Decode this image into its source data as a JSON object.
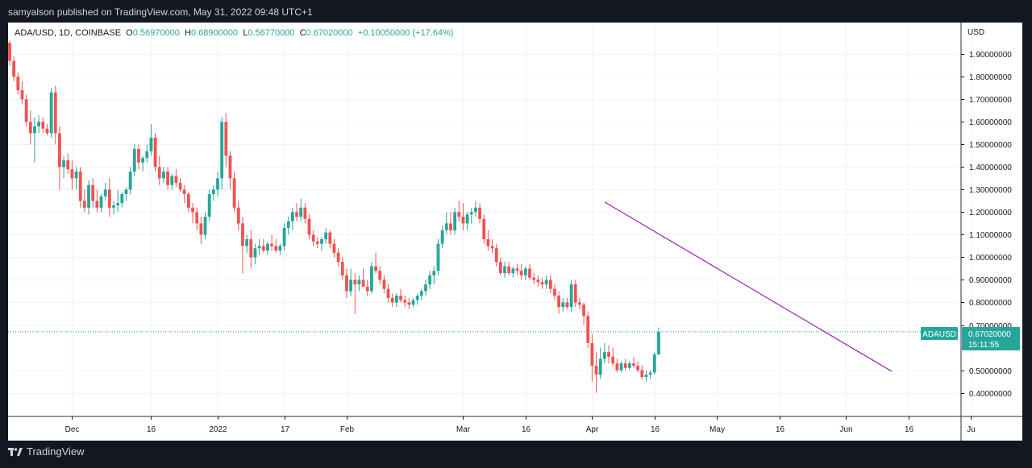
{
  "header": {
    "publish_text": "samyalson published on TradingView.com, May 31, 2022 09:48 UTC+1"
  },
  "legend": {
    "symbol": "ADA/USD, 1D, COINBASE",
    "open_label": "O",
    "open": "0.56970000",
    "high_label": "H",
    "high": "0.68900000",
    "low_label": "L",
    "low": "0.56770000",
    "close_label": "C",
    "close": "0.67020000",
    "change": "+0.10050000 (+17.64%)"
  },
  "price_tag": {
    "symbol": "ADAUSD",
    "price": "0.67020000",
    "countdown": "15:11:55"
  },
  "footer": {
    "brand": "TradingView"
  },
  "colors": {
    "up": "#26a69a",
    "down": "#ef5350",
    "trend": "#9c27b0",
    "grid": "#f0f3fa"
  },
  "chart_data": {
    "type": "candlestick",
    "title": "ADA/USD, 1D, COINBASE",
    "currency_label": "USD",
    "y_range": [
      0.295,
      2.04
    ],
    "y_ticks": [
      "1.90000000",
      "1.80000000",
      "1.70000000",
      "1.60000000",
      "1.50000000",
      "1.40000000",
      "1.30000000",
      "1.20000000",
      "1.10000000",
      "1.00000000",
      "0.90000000",
      "0.80000000",
      "0.70000000",
      "0.50000000",
      "0.40000000"
    ],
    "x_ticks": [
      {
        "label": "Dec",
        "bar": 15
      },
      {
        "label": "16",
        "bar": 34
      },
      {
        "label": "2022",
        "bar": 50
      },
      {
        "label": "17",
        "bar": 66
      },
      {
        "label": "Feb",
        "bar": 81
      },
      {
        "label": "Mar",
        "bar": 109
      },
      {
        "label": "16",
        "bar": 124
      },
      {
        "label": "Apr",
        "bar": 140
      },
      {
        "label": "16",
        "bar": 155
      },
      {
        "label": "May",
        "bar": 170
      },
      {
        "label": "16",
        "bar": 185
      },
      {
        "label": "Jun",
        "bar": 201
      },
      {
        "label": "16",
        "bar": 216
      },
      {
        "label": "Ju",
        "bar": 231
      }
    ],
    "trendline": {
      "start": {
        "bar": 143,
        "price": 1.245
      },
      "end": {
        "bar": 212,
        "price": 0.495
      }
    },
    "current_price": 0.6702,
    "candles": [
      [
        1.95,
        1.96,
        1.85,
        1.87
      ],
      [
        1.87,
        1.89,
        1.78,
        1.8
      ],
      [
        1.8,
        1.82,
        1.72,
        1.74
      ],
      [
        1.74,
        1.78,
        1.68,
        1.7
      ],
      [
        1.7,
        1.72,
        1.58,
        1.6
      ],
      [
        1.6,
        1.65,
        1.5,
        1.55
      ],
      [
        1.55,
        1.62,
        1.42,
        1.58
      ],
      [
        1.58,
        1.63,
        1.55,
        1.6
      ],
      [
        1.6,
        1.62,
        1.55,
        1.57
      ],
      [
        1.57,
        1.59,
        1.54,
        1.55
      ],
      [
        1.55,
        1.75,
        1.53,
        1.73
      ],
      [
        1.73,
        1.76,
        1.5,
        1.55
      ],
      [
        1.55,
        1.58,
        1.3,
        1.4
      ],
      [
        1.4,
        1.45,
        1.35,
        1.43
      ],
      [
        1.43,
        1.46,
        1.37,
        1.39
      ],
      [
        1.39,
        1.43,
        1.3,
        1.35
      ],
      [
        1.35,
        1.4,
        1.3,
        1.38
      ],
      [
        1.38,
        1.4,
        1.22,
        1.25
      ],
      [
        1.25,
        1.3,
        1.2,
        1.22
      ],
      [
        1.22,
        1.34,
        1.19,
        1.32
      ],
      [
        1.32,
        1.35,
        1.22,
        1.25
      ],
      [
        1.25,
        1.3,
        1.2,
        1.22
      ],
      [
        1.22,
        1.28,
        1.2,
        1.27
      ],
      [
        1.27,
        1.33,
        1.25,
        1.3
      ],
      [
        1.3,
        1.35,
        1.18,
        1.22
      ],
      [
        1.22,
        1.25,
        1.19,
        1.23
      ],
      [
        1.23,
        1.3,
        1.2,
        1.24
      ],
      [
        1.24,
        1.29,
        1.22,
        1.28
      ],
      [
        1.28,
        1.31,
        1.25,
        1.3
      ],
      [
        1.3,
        1.4,
        1.28,
        1.38
      ],
      [
        1.38,
        1.5,
        1.36,
        1.48
      ],
      [
        1.48,
        1.5,
        1.39,
        1.42
      ],
      [
        1.42,
        1.45,
        1.38,
        1.44
      ],
      [
        1.44,
        1.5,
        1.42,
        1.47
      ],
      [
        1.47,
        1.59,
        1.45,
        1.53
      ],
      [
        1.53,
        1.55,
        1.38,
        1.4
      ],
      [
        1.4,
        1.45,
        1.32,
        1.35
      ],
      [
        1.35,
        1.4,
        1.33,
        1.38
      ],
      [
        1.38,
        1.4,
        1.3,
        1.32
      ],
      [
        1.32,
        1.37,
        1.3,
        1.36
      ],
      [
        1.36,
        1.39,
        1.31,
        1.33
      ],
      [
        1.33,
        1.35,
        1.29,
        1.3
      ],
      [
        1.3,
        1.32,
        1.24,
        1.28
      ],
      [
        1.28,
        1.29,
        1.2,
        1.22
      ],
      [
        1.22,
        1.24,
        1.15,
        1.2
      ],
      [
        1.2,
        1.22,
        1.12,
        1.15
      ],
      [
        1.15,
        1.18,
        1.06,
        1.1
      ],
      [
        1.1,
        1.2,
        1.08,
        1.18
      ],
      [
        1.18,
        1.3,
        1.16,
        1.28
      ],
      [
        1.28,
        1.32,
        1.25,
        1.3
      ],
      [
        1.3,
        1.38,
        1.27,
        1.35
      ],
      [
        1.35,
        1.62,
        1.3,
        1.6
      ],
      [
        1.6,
        1.64,
        1.4,
        1.45
      ],
      [
        1.45,
        1.47,
        1.3,
        1.35
      ],
      [
        1.35,
        1.38,
        1.2,
        1.22
      ],
      [
        1.22,
        1.25,
        1.12,
        1.15
      ],
      [
        1.15,
        1.18,
        0.93,
        1.05
      ],
      [
        1.05,
        1.1,
        1.02,
        1.08
      ],
      [
        1.08,
        1.12,
        0.95,
        1.0
      ],
      [
        1.0,
        1.06,
        0.97,
        1.04
      ],
      [
        1.04,
        1.08,
        1.01,
        1.05
      ],
      [
        1.05,
        1.08,
        1.02,
        1.03
      ],
      [
        1.03,
        1.07,
        1.01,
        1.06
      ],
      [
        1.06,
        1.1,
        1.03,
        1.05
      ],
      [
        1.05,
        1.08,
        1.02,
        1.03
      ],
      [
        1.03,
        1.06,
        1.01,
        1.05
      ],
      [
        1.05,
        1.15,
        1.03,
        1.13
      ],
      [
        1.13,
        1.18,
        1.1,
        1.16
      ],
      [
        1.16,
        1.22,
        1.12,
        1.2
      ],
      [
        1.2,
        1.24,
        1.16,
        1.18
      ],
      [
        1.18,
        1.26,
        1.16,
        1.22
      ],
      [
        1.22,
        1.24,
        1.15,
        1.17
      ],
      [
        1.17,
        1.19,
        1.08,
        1.1
      ],
      [
        1.1,
        1.12,
        1.05,
        1.07
      ],
      [
        1.07,
        1.09,
        1.04,
        1.06
      ],
      [
        1.06,
        1.09,
        1.03,
        1.08
      ],
      [
        1.08,
        1.13,
        1.06,
        1.11
      ],
      [
        1.11,
        1.12,
        1.04,
        1.06
      ],
      [
        1.06,
        1.08,
        1.0,
        1.02
      ],
      [
        1.02,
        1.04,
        0.96,
        0.98
      ],
      [
        0.98,
        1.0,
        0.9,
        0.92
      ],
      [
        0.92,
        0.95,
        0.82,
        0.85
      ],
      [
        0.85,
        0.95,
        0.83,
        0.9
      ],
      [
        0.9,
        0.93,
        0.75,
        0.88
      ],
      [
        0.88,
        0.92,
        0.85,
        0.9
      ],
      [
        0.9,
        0.95,
        0.87,
        0.87
      ],
      [
        0.87,
        0.9,
        0.83,
        0.85
      ],
      [
        0.85,
        0.98,
        0.84,
        0.96
      ],
      [
        0.96,
        1.02,
        0.93,
        0.94
      ],
      [
        0.94,
        0.96,
        0.88,
        0.9
      ],
      [
        0.9,
        0.92,
        0.84,
        0.86
      ],
      [
        0.86,
        0.88,
        0.8,
        0.82
      ],
      [
        0.82,
        0.84,
        0.78,
        0.8
      ],
      [
        0.8,
        0.84,
        0.78,
        0.83
      ],
      [
        0.83,
        0.86,
        0.8,
        0.81
      ],
      [
        0.81,
        0.83,
        0.78,
        0.8
      ],
      [
        0.8,
        0.82,
        0.77,
        0.79
      ],
      [
        0.79,
        0.82,
        0.78,
        0.81
      ],
      [
        0.81,
        0.84,
        0.79,
        0.83
      ],
      [
        0.83,
        0.86,
        0.81,
        0.85
      ],
      [
        0.85,
        0.9,
        0.83,
        0.88
      ],
      [
        0.88,
        0.94,
        0.86,
        0.92
      ],
      [
        0.92,
        0.96,
        0.88,
        0.94
      ],
      [
        0.94,
        1.08,
        0.92,
        1.06
      ],
      [
        1.06,
        1.14,
        1.04,
        1.12
      ],
      [
        1.12,
        1.2,
        1.1,
        1.15
      ],
      [
        1.15,
        1.2,
        1.1,
        1.12
      ],
      [
        1.12,
        1.22,
        1.1,
        1.2
      ],
      [
        1.2,
        1.25,
        1.16,
        1.18
      ],
      [
        1.18,
        1.24,
        1.12,
        1.15
      ],
      [
        1.15,
        1.2,
        1.12,
        1.19
      ],
      [
        1.19,
        1.22,
        1.15,
        1.2
      ],
      [
        1.2,
        1.25,
        1.18,
        1.22
      ],
      [
        1.22,
        1.24,
        1.15,
        1.17
      ],
      [
        1.17,
        1.19,
        1.06,
        1.08
      ],
      [
        1.08,
        1.12,
        1.03,
        1.05
      ],
      [
        1.05,
        1.08,
        1.02,
        1.04
      ],
      [
        1.04,
        1.06,
        0.96,
        0.98
      ],
      [
        0.98,
        1.0,
        0.92,
        0.93
      ],
      [
        0.93,
        0.98,
        0.91,
        0.96
      ],
      [
        0.96,
        0.98,
        0.92,
        0.93
      ],
      [
        0.93,
        0.96,
        0.91,
        0.95
      ],
      [
        0.95,
        0.97,
        0.92,
        0.94
      ],
      [
        0.94,
        0.97,
        0.9,
        0.92
      ],
      [
        0.92,
        0.96,
        0.9,
        0.95
      ],
      [
        0.95,
        0.97,
        0.9,
        0.91
      ],
      [
        0.91,
        0.93,
        0.88,
        0.9
      ],
      [
        0.9,
        0.92,
        0.87,
        0.89
      ],
      [
        0.89,
        0.91,
        0.86,
        0.88
      ],
      [
        0.88,
        0.92,
        0.86,
        0.9
      ],
      [
        0.9,
        0.92,
        0.84,
        0.86
      ],
      [
        0.86,
        0.88,
        0.81,
        0.83
      ],
      [
        0.83,
        0.85,
        0.75,
        0.78
      ],
      [
        0.78,
        0.82,
        0.76,
        0.8
      ],
      [
        0.8,
        0.82,
        0.77,
        0.78
      ],
      [
        0.78,
        0.9,
        0.76,
        0.88
      ],
      [
        0.88,
        0.9,
        0.78,
        0.8
      ],
      [
        0.8,
        0.82,
        0.77,
        0.79
      ],
      [
        0.79,
        0.8,
        0.7,
        0.74
      ],
      [
        0.74,
        0.76,
        0.6,
        0.62
      ],
      [
        0.62,
        0.66,
        0.45,
        0.52
      ],
      [
        0.52,
        0.58,
        0.4,
        0.48
      ],
      [
        0.48,
        0.6,
        0.46,
        0.55
      ],
      [
        0.55,
        0.62,
        0.53,
        0.58
      ],
      [
        0.58,
        0.61,
        0.53,
        0.56
      ],
      [
        0.56,
        0.6,
        0.52,
        0.53
      ],
      [
        0.53,
        0.55,
        0.49,
        0.5
      ],
      [
        0.5,
        0.54,
        0.49,
        0.53
      ],
      [
        0.53,
        0.55,
        0.5,
        0.51
      ],
      [
        0.51,
        0.54,
        0.5,
        0.53
      ],
      [
        0.53,
        0.56,
        0.51,
        0.52
      ],
      [
        0.52,
        0.54,
        0.49,
        0.5
      ],
      [
        0.5,
        0.52,
        0.46,
        0.47
      ],
      [
        0.47,
        0.5,
        0.45,
        0.48
      ],
      [
        0.48,
        0.5,
        0.46,
        0.49
      ],
      [
        0.49,
        0.58,
        0.48,
        0.57
      ],
      [
        0.5697,
        0.689,
        0.5677,
        0.6702
      ]
    ]
  }
}
